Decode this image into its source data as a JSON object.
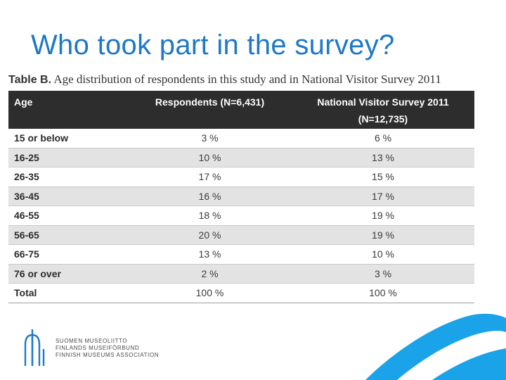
{
  "slide": {
    "title": "Who took part in the survey?"
  },
  "table": {
    "caption_label": "Table B.",
    "caption_text": "Age distribution of respondents in this study and in National Visitor Survey 2011",
    "headers": {
      "age": "Age",
      "respondents": "Respondents (N=6,431)",
      "national": "National Visitor Survey 2011",
      "national_n": "(N=12,735)"
    },
    "rows": [
      {
        "age": "15 or below",
        "respondents": "3 %",
        "national": "6 %"
      },
      {
        "age": "16-25",
        "respondents": "10 %",
        "national": "13 %"
      },
      {
        "age": "26-35",
        "respondents": "17 %",
        "national": "15 %"
      },
      {
        "age": "36-45",
        "respondents": "16 %",
        "national": "17 %"
      },
      {
        "age": "46-55",
        "respondents": "18 %",
        "national": "19 %"
      },
      {
        "age": "56-65",
        "respondents": "20 %",
        "national": "19 %"
      },
      {
        "age": "66-75",
        "respondents": "13 %",
        "national": "10 %"
      },
      {
        "age": "76 or over",
        "respondents": "2 %",
        "national": "3 %"
      }
    ],
    "total": {
      "age": "Total",
      "respondents": "100 %",
      "national": "100 %"
    }
  },
  "footer": {
    "org_lines": [
      "SUOMEN MUSEOLIITTO",
      "FINLANDS MUSEIFÖRBUND",
      "FINNISH MUSEUMS ASSOCIATION"
    ]
  },
  "colors": {
    "title": "#1e78c8",
    "accent_swoosh": "#1aa3e8",
    "header_bg": "#2d2d2d"
  }
}
